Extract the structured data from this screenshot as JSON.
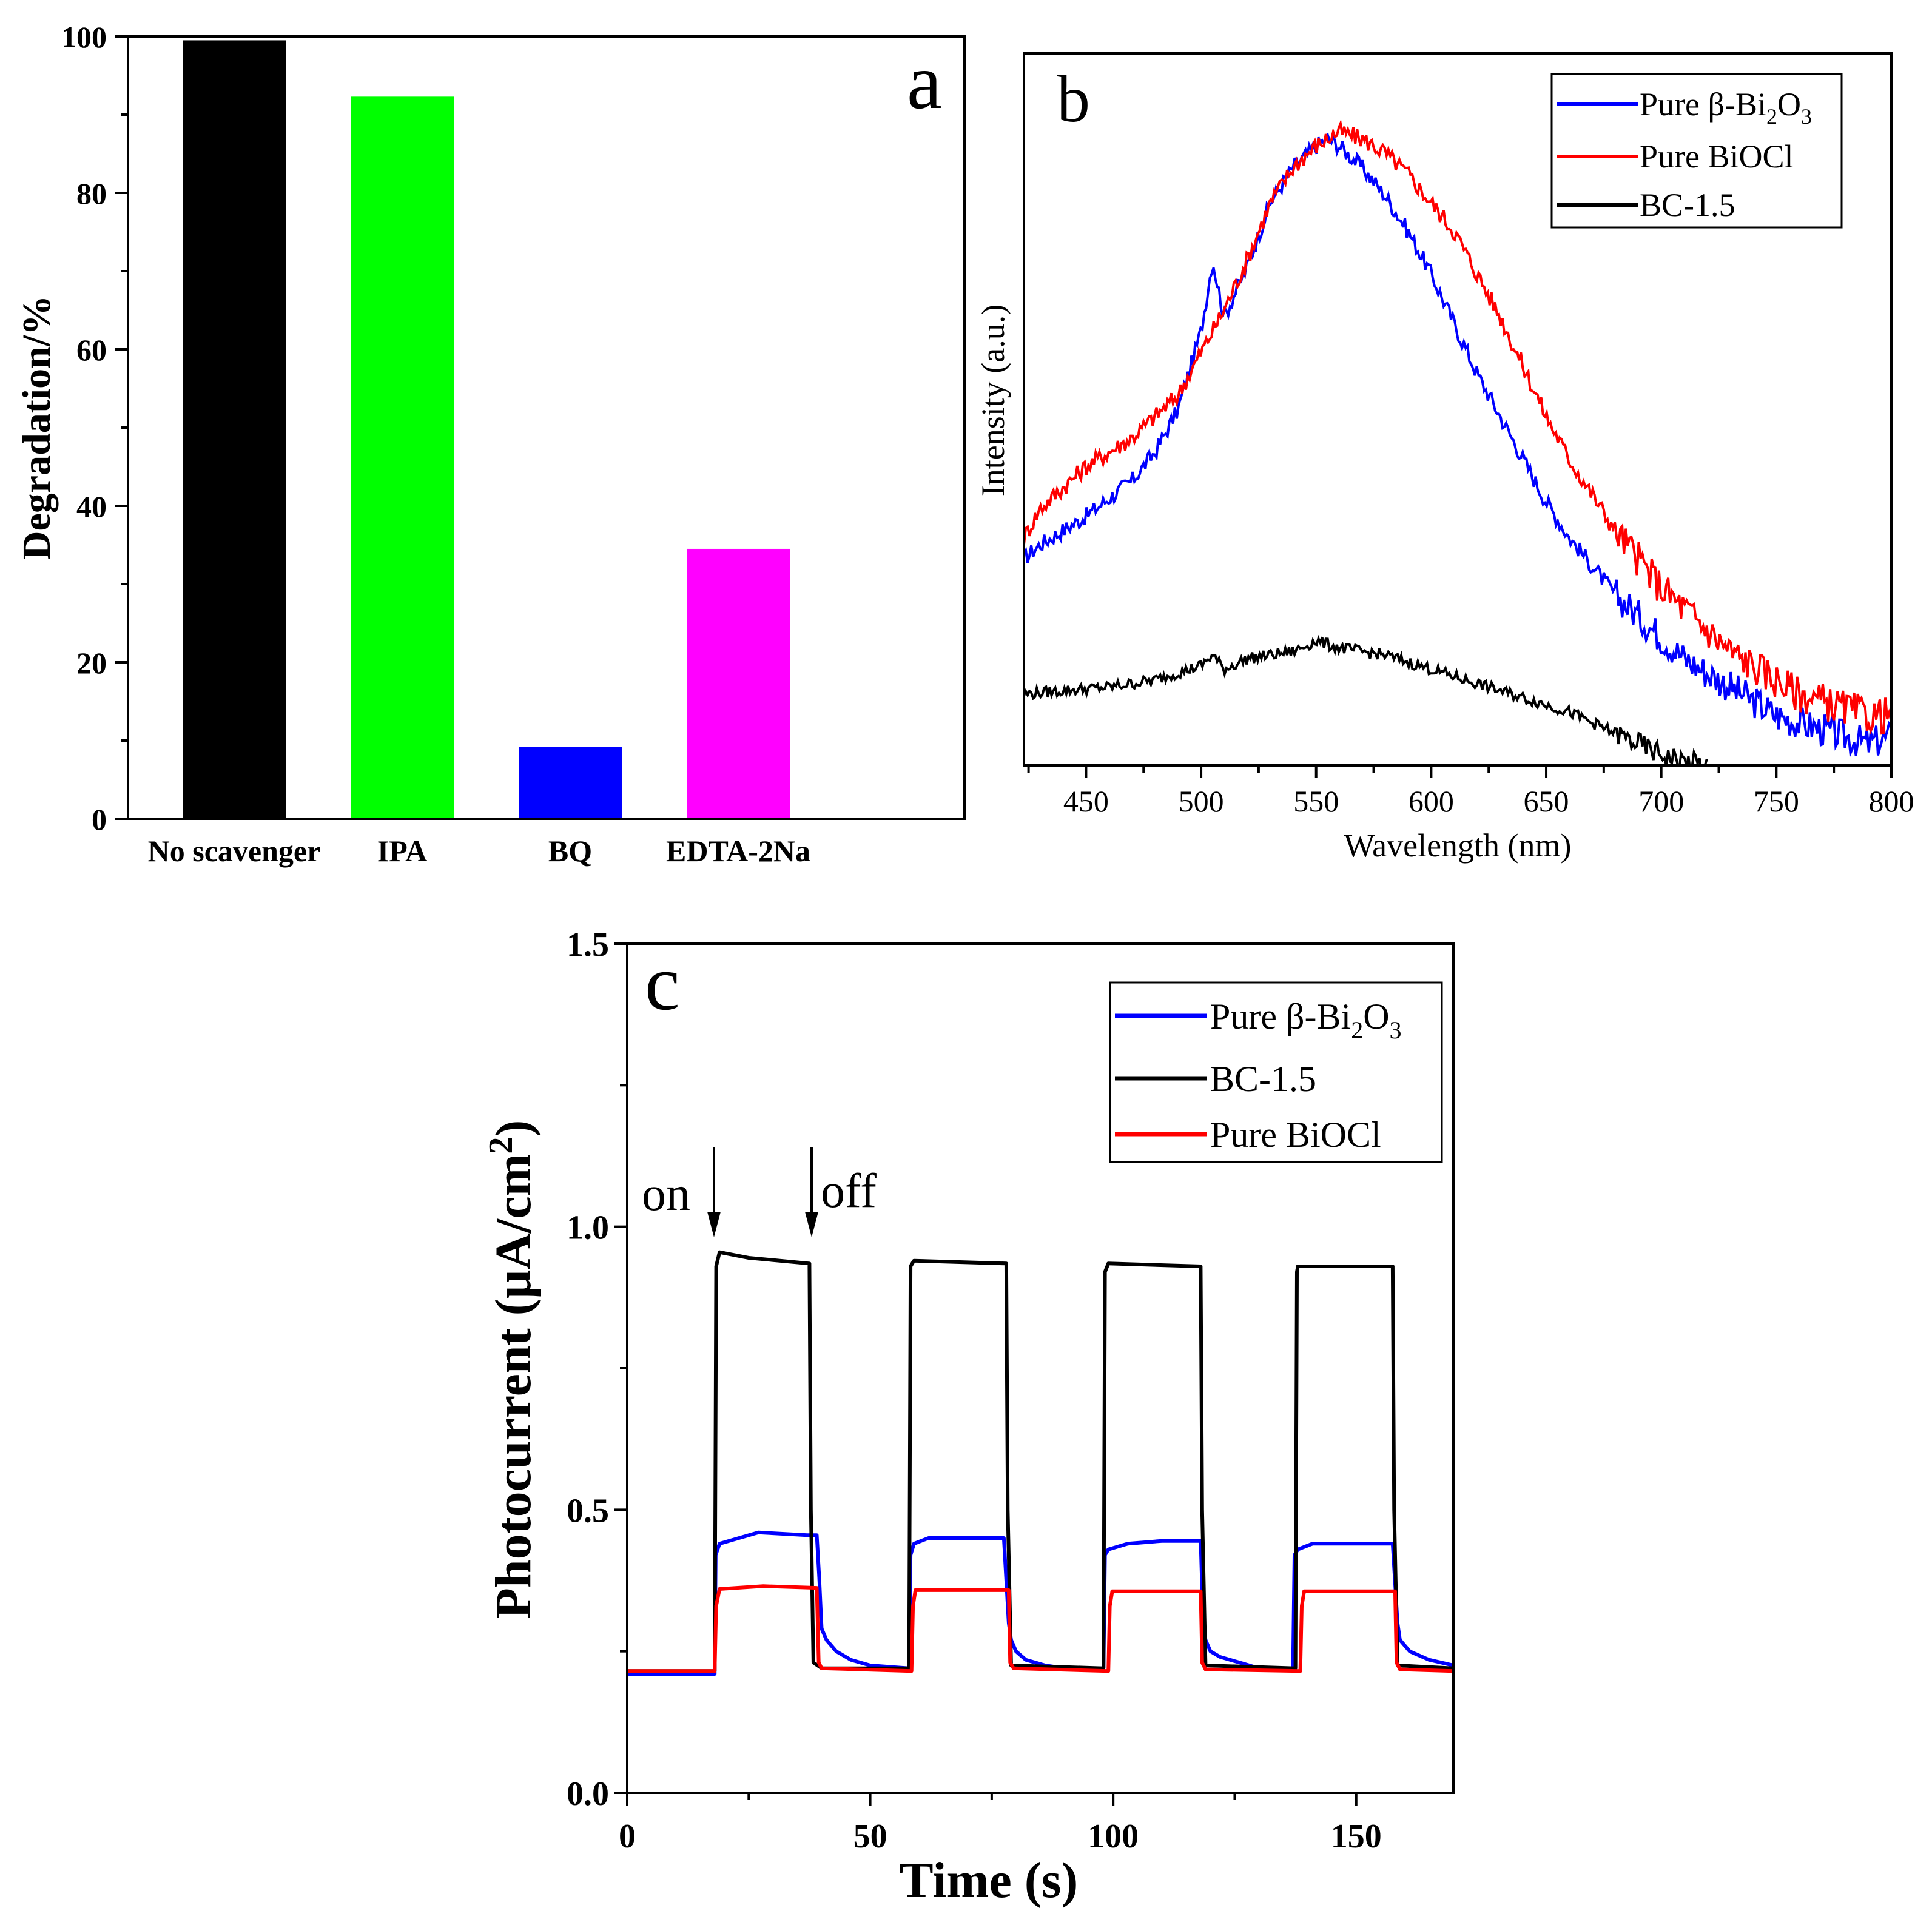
{
  "chart_data": [
    {
      "panel": "a",
      "type": "bar",
      "title": "",
      "panel_label": "a",
      "xlabel": "",
      "ylabel": "Degradation/%",
      "categories": [
        "No scavenger",
        "IPA",
        "BQ",
        "EDTA-2Na"
      ],
      "values": [
        99.5,
        92.3,
        9.2,
        34.5
      ],
      "colors": [
        "#000000",
        "#00ff00",
        "#0000ff",
        "#ff00ff"
      ],
      "ylim": [
        0,
        100
      ],
      "yticks": [
        0,
        20,
        40,
        60,
        80,
        100
      ],
      "grid": false
    },
    {
      "panel": "b",
      "type": "line",
      "panel_label": "b",
      "xlabel": "Wavelength (nm)",
      "ylabel": "Intensity (a.u.)",
      "xlim": [
        423,
        800
      ],
      "ylim": [
        0,
        100
      ],
      "xticks": [
        450,
        500,
        550,
        600,
        650,
        700,
        750,
        800
      ],
      "y_tick_labels_shown": false,
      "legend_position": "top-right",
      "series": [
        {
          "name": "Pure β-Bi2O3",
          "color": "#0000ff",
          "x": [
            423,
            430,
            450,
            470,
            480,
            490,
            500,
            505,
            510,
            520,
            530,
            540,
            550,
            555,
            560,
            570,
            580,
            590,
            600,
            610,
            620,
            630,
            640,
            650,
            660,
            670,
            680,
            690,
            700,
            710,
            720,
            730,
            740,
            750,
            760,
            770,
            780,
            790,
            800
          ],
          "y": [
            29,
            31,
            35,
            40,
            44,
            50,
            61,
            71,
            63,
            70,
            79,
            84,
            87,
            88,
            87,
            84,
            80,
            75,
            69,
            62,
            55,
            49,
            43,
            37,
            32,
            28,
            24,
            21,
            18,
            15,
            13,
            11,
            9,
            7,
            6,
            5,
            4,
            3,
            4
          ]
        },
        {
          "name": "Pure BiOCl",
          "color": "#ff0000",
          "x": [
            423,
            430,
            450,
            470,
            490,
            500,
            510,
            520,
            530,
            540,
            550,
            560,
            570,
            580,
            590,
            600,
            610,
            620,
            630,
            640,
            650,
            660,
            670,
            680,
            690,
            700,
            710,
            720,
            730,
            740,
            750,
            760,
            770,
            780,
            790,
            800
          ],
          "y": [
            32,
            36,
            42,
            46,
            52,
            58,
            64,
            71,
            79,
            84,
            87,
            89,
            88,
            86,
            83,
            79,
            75,
            69,
            63,
            56,
            49,
            43,
            38,
            33,
            29,
            25,
            22,
            19,
            16,
            14,
            12,
            10,
            9,
            8,
            7,
            7
          ]
        },
        {
          "name": "BC-1.5",
          "color": "#000000",
          "x": [
            423,
            440,
            460,
            480,
            500,
            505,
            510,
            520,
            530,
            540,
            550,
            560,
            570,
            580,
            590,
            600,
            610,
            620,
            630,
            640,
            650,
            660,
            670,
            680,
            690,
            700,
            710,
            720
          ],
          "y": [
            10,
            10.5,
            11,
            12,
            14,
            15.5,
            13.5,
            15,
            15.5,
            16,
            17.5,
            16.5,
            16,
            15.5,
            14.5,
            13.5,
            12.5,
            11.5,
            10.5,
            9.5,
            8.5,
            7.5,
            6,
            4.5,
            3,
            1.5,
            0.5,
            0
          ]
        }
      ]
    },
    {
      "panel": "c",
      "type": "line",
      "panel_label": "c",
      "xlabel": "Time (s)",
      "ylabel": "Photocurrent (μA/cm²)",
      "xlim": [
        0,
        170
      ],
      "ylim": [
        0,
        1.5
      ],
      "xticks": [
        0,
        50,
        100,
        150
      ],
      "yticks": [
        "0.0",
        "0.5",
        "1.0",
        "1.5"
      ],
      "legend_position": "top-right",
      "annotations": {
        "on": "on",
        "off": "off"
      },
      "series": [
        {
          "name": "Pure β-Bi2O3",
          "color": "#0000ff",
          "x": [
            0,
            18,
            18.2,
            19,
            27,
            37,
            39,
            39.5,
            40,
            41,
            43,
            46,
            50,
            58,
            58.3,
            59,
            62,
            70,
            77.5,
            78.5,
            79,
            80,
            82,
            86,
            90,
            98,
            98.3,
            99,
            103,
            110,
            118,
            118.5,
            119,
            120,
            122,
            126,
            130,
            137,
            137.3,
            138,
            141,
            150,
            157.5,
            158.5,
            159,
            161,
            165,
            170
          ],
          "y": [
            0.21,
            0.21,
            0.42,
            0.44,
            0.46,
            0.455,
            0.455,
            0.38,
            0.29,
            0.27,
            0.25,
            0.235,
            0.225,
            0.22,
            0.42,
            0.44,
            0.45,
            0.45,
            0.45,
            0.3,
            0.27,
            0.25,
            0.235,
            0.225,
            0.22,
            0.22,
            0.42,
            0.43,
            0.44,
            0.445,
            0.445,
            0.3,
            0.27,
            0.25,
            0.24,
            0.23,
            0.22,
            0.22,
            0.42,
            0.43,
            0.44,
            0.44,
            0.44,
            0.3,
            0.27,
            0.25,
            0.235,
            0.225
          ]
        },
        {
          "name": "BC-1.5",
          "color": "#000000",
          "x": [
            0,
            18,
            18.3,
            19,
            25,
            37.5,
            37.8,
            38.3,
            40,
            58,
            58.3,
            59,
            78,
            78.3,
            79,
            98,
            98.3,
            99,
            118,
            118.3,
            119,
            137.5,
            137.8,
            138,
            157.5,
            157.8,
            158.5,
            170
          ],
          "y": [
            0.215,
            0.215,
            0.93,
            0.955,
            0.945,
            0.935,
            0.5,
            0.23,
            0.22,
            0.22,
            0.93,
            0.94,
            0.935,
            0.5,
            0.225,
            0.22,
            0.92,
            0.935,
            0.93,
            0.5,
            0.225,
            0.22,
            0.92,
            0.93,
            0.93,
            0.5,
            0.225,
            0.22
          ]
        },
        {
          "name": "Pure BiOCl",
          "color": "#ff0000",
          "x": [
            0,
            18,
            18.3,
            19,
            28,
            39,
            39.4,
            40,
            58.5,
            58.8,
            59.3,
            78.5,
            78.8,
            79.5,
            99,
            99.3,
            99.8,
            118,
            118.3,
            119,
            138.5,
            138.8,
            139.3,
            158,
            158.3,
            159,
            170
          ],
          "y": [
            0.215,
            0.215,
            0.33,
            0.36,
            0.365,
            0.362,
            0.23,
            0.22,
            0.215,
            0.33,
            0.358,
            0.358,
            0.23,
            0.22,
            0.215,
            0.33,
            0.356,
            0.356,
            0.23,
            0.218,
            0.215,
            0.33,
            0.356,
            0.356,
            0.23,
            0.218,
            0.215
          ]
        }
      ]
    }
  ]
}
